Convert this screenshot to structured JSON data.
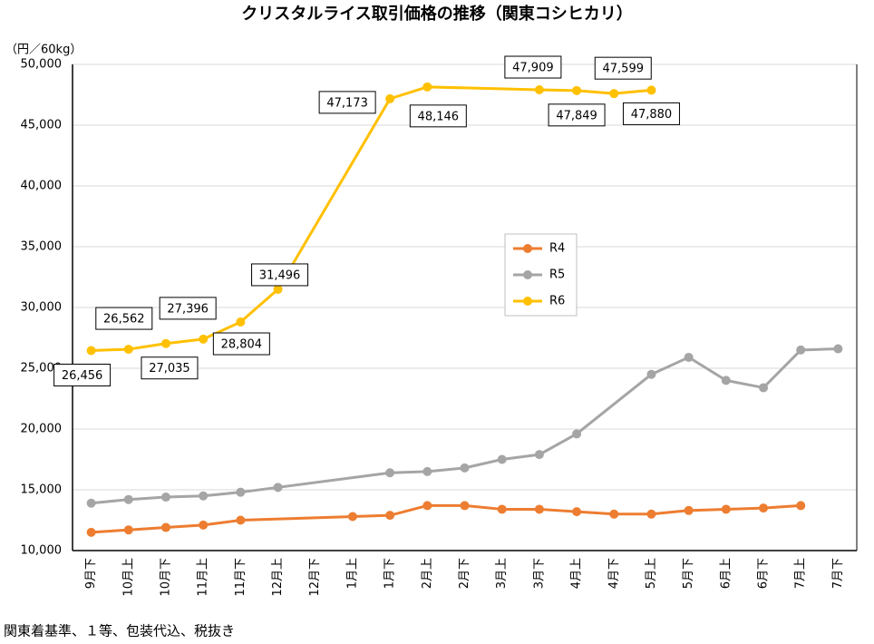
{
  "chart_data": {
    "type": "line",
    "title": "クリスタルライス取引価格の推移（関東コシヒカリ）",
    "y_label": "（円／60kg）",
    "note": "関東着基準、１等、包装代込、税抜き",
    "categories": [
      "9月下",
      "10月上",
      "10月下",
      "11月上",
      "11月下",
      "12月上",
      "12月下",
      "1月上",
      "1月下",
      "2月上",
      "2月下",
      "3月上",
      "3月下",
      "4月上",
      "4月下",
      "5月上",
      "5月下",
      "6月上",
      "6月下",
      "7月上",
      "7月下"
    ],
    "series": [
      {
        "name": "R4",
        "color": "#ed7d31",
        "values": [
          11500,
          11700,
          11900,
          12100,
          12500,
          null,
          null,
          12800,
          12900,
          13700,
          13700,
          13400,
          13400,
          13200,
          13000,
          13000,
          13300,
          13400,
          13500,
          13700,
          null
        ]
      },
      {
        "name": "R5",
        "color": "#a5a5a5",
        "values": [
          13900,
          14200,
          14400,
          14500,
          14800,
          15200,
          null,
          null,
          16400,
          16500,
          16800,
          17500,
          17900,
          19600,
          null,
          24500,
          25900,
          24000,
          23400,
          26500,
          26600
        ]
      },
      {
        "name": "R6",
        "color": "#ffc000",
        "values": [
          26456,
          26562,
          27035,
          27396,
          28804,
          31496,
          null,
          null,
          47173,
          48146,
          null,
          null,
          47909,
          47849,
          47599,
          47880,
          null,
          null,
          null,
          null,
          null
        ],
        "value_labels": [
          "26,456",
          "26,562",
          "27,035",
          "27,396",
          "28,804",
          "31,496",
          null,
          null,
          "47,173",
          "48,146",
          null,
          null,
          "47,909",
          "47,849",
          "47,599",
          "47,880",
          null,
          null,
          null,
          null,
          null
        ]
      }
    ],
    "ylim": [
      10000,
      50000
    ],
    "yticks": [
      {
        "value": 10000,
        "label": "10,000"
      },
      {
        "value": 15000,
        "label": "15,000"
      },
      {
        "value": 20000,
        "label": "20,000"
      },
      {
        "value": 25000,
        "label": "25,000"
      },
      {
        "value": 30000,
        "label": "30,000"
      },
      {
        "value": 35000,
        "label": "35,000"
      },
      {
        "value": 40000,
        "label": "40,000"
      },
      {
        "value": 45000,
        "label": "45,000"
      },
      {
        "value": 50000,
        "label": "50,000"
      }
    ],
    "grid": true,
    "connect_gaps": true
  }
}
